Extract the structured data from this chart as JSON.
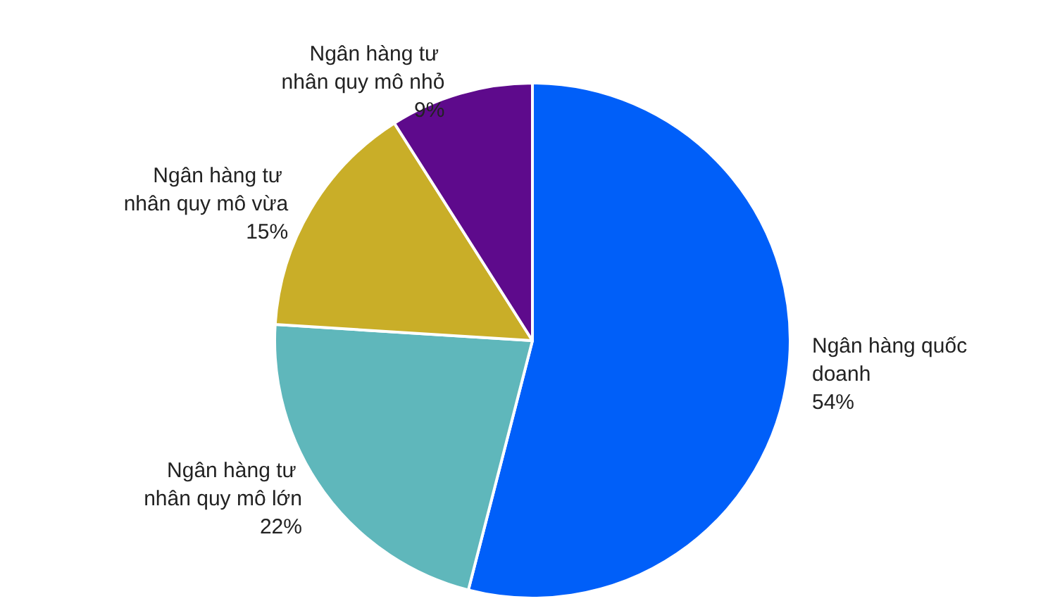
{
  "chart_data": {
    "type": "pie",
    "categories": [
      "Ngân hàng quốc doanh",
      "Ngân hàng tư nhân quy mô lớn",
      "Ngân hàng tư nhân quy mô vừa",
      "Ngân hàng tư nhân quy mô nhỏ"
    ],
    "values": [
      54,
      22,
      15,
      9
    ],
    "colors": [
      "#005ff9",
      "#5fb7bb",
      "#c9ae28",
      "#5e0a8c"
    ],
    "value_labels": [
      "54%",
      "22%",
      "15%",
      "9%"
    ],
    "legend": false
  }
}
